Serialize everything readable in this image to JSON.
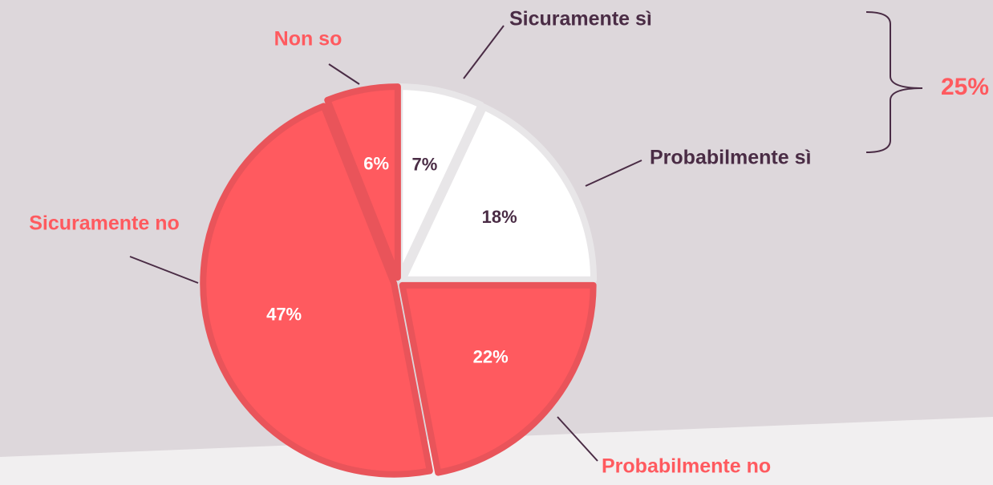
{
  "chart_data": {
    "type": "pie",
    "categories": [
      "Sicuramente sì",
      "Probabilmente sì",
      "Probabilmente no",
      "Sicuramente no",
      "Non so"
    ],
    "values": [
      7,
      18,
      22,
      47,
      6
    ],
    "value_labels": [
      "7%",
      "18%",
      "22%",
      "47%",
      "6%"
    ],
    "colors": [
      "#ffffff",
      "#ffffff",
      "#ff5a5f",
      "#ff5a5f",
      "#ff5a5f"
    ],
    "border_colors": [
      "#e8e6e8",
      "#e8e6e8",
      "#e9545a",
      "#e9545a",
      "#e9545a"
    ],
    "label_colors": [
      "#4a2c45",
      "#4a2c45",
      "#ff5a5f",
      "#ff5a5f",
      "#ff5a5f"
    ],
    "value_label_colors": [
      "#4a2c45",
      "#4a2c45",
      "#ffffff",
      "#ffffff",
      "#ffffff"
    ],
    "annotation": "25%"
  }
}
